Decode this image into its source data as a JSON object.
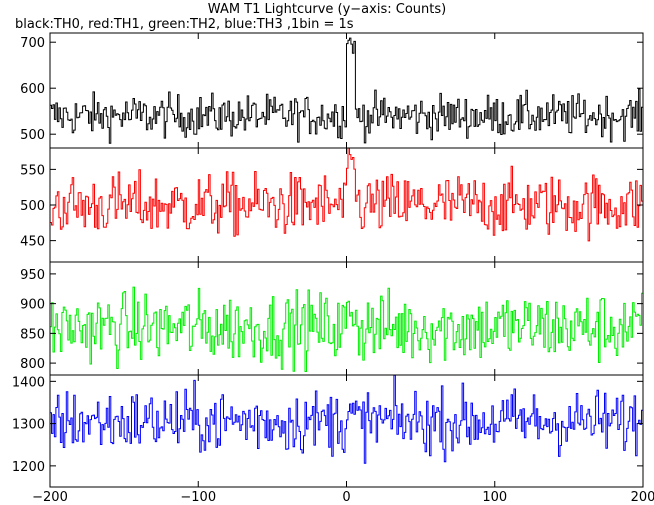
{
  "title": "WAM T1 Lightcurve (y−axis: Counts)",
  "subtitle": "black:TH0, red:TH1, green:TH2, blue:TH3 ,1bin = 1s",
  "chart_data": {
    "type": "line",
    "title": "WAM T1 Lightcurve (y−axis: Counts)",
    "subtitle": "black:TH0, red:TH1, green:TH2, blue:TH3 ,1bin = 1s",
    "x_range": [
      -200,
      200
    ],
    "x_ticks": [
      -200,
      -100,
      0,
      100,
      200
    ],
    "x_tick_labels": [
      "−200",
      "−100",
      "0",
      "100",
      "200"
    ],
    "series": [
      {
        "name": "TH0",
        "color": "#000000",
        "ylim": [
          470,
          720
        ],
        "y_ticks": [
          500,
          600,
          700
        ],
        "baseline": 540,
        "noise": 23,
        "burst_peak": 700
      },
      {
        "name": "TH1",
        "color": "#ff0000",
        "ylim": [
          420,
          580
        ],
        "y_ticks": [
          450,
          500,
          550
        ],
        "baseline": 500,
        "noise": 22,
        "burst_peak": 560
      },
      {
        "name": "TH2",
        "color": "#00ee00",
        "ylim": [
          780,
          970
        ],
        "y_ticks": [
          800,
          850,
          900,
          950
        ],
        "baseline": 860,
        "noise": 30,
        "burst_peak": 880
      },
      {
        "name": "TH3",
        "color": "#0000ff",
        "ylim": [
          1150,
          1415
        ],
        "y_ticks": [
          1200,
          1300,
          1400
        ],
        "baseline": 1305,
        "noise": 38,
        "burst_peak": 1320
      }
    ]
  }
}
